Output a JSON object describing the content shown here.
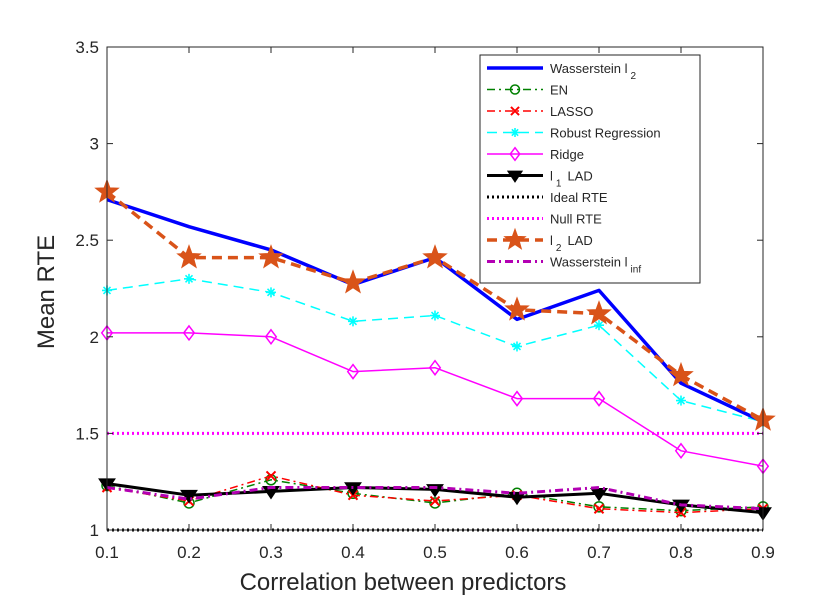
{
  "chart_data": {
    "type": "line",
    "title": "",
    "xlabel": "Correlation between predictors",
    "ylabel": "Mean RTE",
    "xlim": [
      0.1,
      0.9
    ],
    "ylim": [
      1,
      3.5
    ],
    "x": [
      0.1,
      0.2,
      0.3,
      0.4,
      0.5,
      0.6,
      0.7,
      0.8,
      0.9
    ],
    "xticks": [
      "0.1",
      "0.2",
      "0.3",
      "0.4",
      "0.5",
      "0.6",
      "0.7",
      "0.8",
      "0.9"
    ],
    "yticks": [
      "1",
      "1.5",
      "2",
      "2.5",
      "3",
      "3.5"
    ],
    "ytick_values": [
      1,
      1.5,
      2,
      2.5,
      3,
      3.5
    ],
    "legend_position": "top-right",
    "series": [
      {
        "name": "Wasserstein l",
        "sub": "2",
        "color": "#0000ff",
        "style": "solid",
        "marker": "none",
        "values": [
          2.71,
          2.57,
          2.45,
          2.27,
          2.41,
          2.09,
          2.24,
          1.76,
          1.56
        ]
      },
      {
        "name": "EN",
        "color": "#008000",
        "style": "dashdot",
        "marker": "circle",
        "values": [
          1.23,
          1.14,
          1.26,
          1.19,
          1.14,
          1.19,
          1.12,
          1.1,
          1.12
        ]
      },
      {
        "name": "LASSO",
        "color": "#ff0000",
        "style": "dashdot",
        "marker": "x",
        "values": [
          1.22,
          1.15,
          1.28,
          1.18,
          1.15,
          1.18,
          1.11,
          1.09,
          1.11
        ]
      },
      {
        "name": "Robust Regression",
        "color": "#00ffff",
        "style": "dashed",
        "marker": "star",
        "values": [
          2.24,
          2.3,
          2.23,
          2.08,
          2.11,
          1.95,
          2.06,
          1.67,
          1.56
        ]
      },
      {
        "name": "Ridge",
        "color": "#ff00ff",
        "style": "solid",
        "marker": "diamond",
        "values": [
          2.02,
          2.02,
          2.0,
          1.82,
          1.84,
          1.68,
          1.68,
          1.41,
          1.33
        ]
      },
      {
        "name": "l",
        "sub": "1",
        "suffix": "LAD",
        "color": "#000000",
        "style": "solid",
        "marker": "triangle-down",
        "values": [
          1.24,
          1.18,
          1.2,
          1.22,
          1.21,
          1.17,
          1.19,
          1.13,
          1.09
        ]
      },
      {
        "name": "Ideal RTE",
        "color": "#000000",
        "style": "dotted",
        "marker": "none",
        "values": [
          1,
          1,
          1,
          1,
          1,
          1,
          1,
          1,
          1
        ]
      },
      {
        "name": "Null RTE",
        "color": "#ff00ff",
        "style": "dotted",
        "marker": "none",
        "values": [
          1.5,
          1.5,
          1.5,
          1.5,
          1.5,
          1.5,
          1.5,
          1.5,
          1.5
        ]
      },
      {
        "name": "l",
        "sub": "2",
        "suffix": "LAD",
        "color": "#d95319",
        "style": "dashed",
        "marker": "pentagram",
        "values": [
          2.75,
          2.41,
          2.41,
          2.28,
          2.41,
          2.14,
          2.12,
          1.8,
          1.57
        ]
      },
      {
        "name": "Wasserstein l",
        "sub": "inf",
        "color": "#b300b3",
        "style": "dashdot",
        "marker": "none",
        "values": [
          1.22,
          1.16,
          1.22,
          1.22,
          1.22,
          1.19,
          1.22,
          1.13,
          1.11
        ]
      }
    ]
  }
}
